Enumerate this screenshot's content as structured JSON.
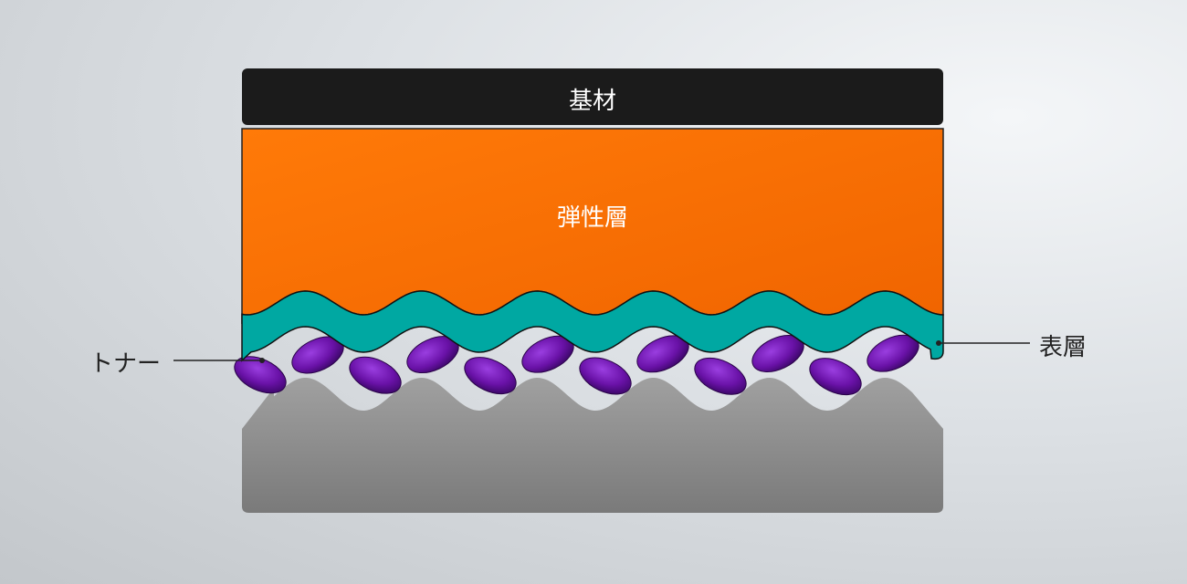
{
  "layers": {
    "substrate": "基材",
    "elastic": "弾性層",
    "surface": "表層",
    "toner": "トナー"
  },
  "colors": {
    "substrate": "#1a1a1a",
    "elastic": "#f57000",
    "surface": "#00a8a2",
    "toner": "#6a12a8",
    "base": "#8a8a8a"
  }
}
